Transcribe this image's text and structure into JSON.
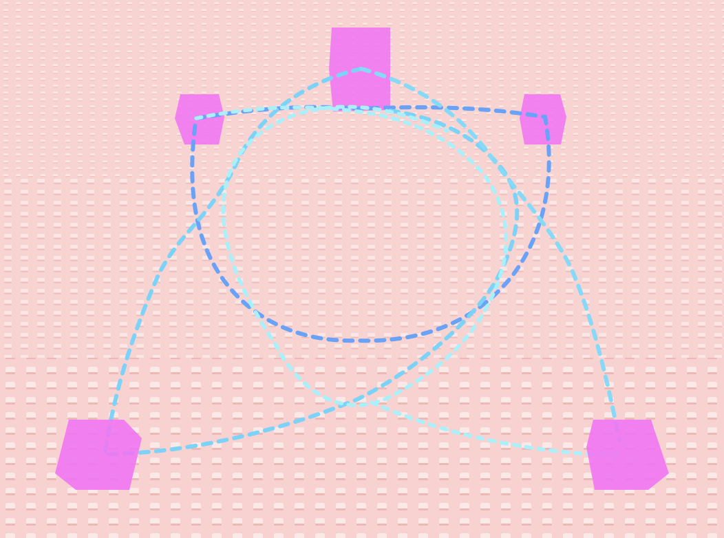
{
  "scene": {
    "kind": "3d-game-viewport",
    "colors": {
      "floor": "#f7d4d2",
      "floor_stud": "#fbe6e4",
      "floor_stud_shadow": "#efbdbb",
      "marker_part": "#f075f2",
      "path_curve": "#6aa2f8",
      "path_edge": "#7dd3f7",
      "path_dotted": "#a9f0fb"
    },
    "parts": [
      {
        "name": "top-center-part"
      },
      {
        "name": "upper-left-part"
      },
      {
        "name": "upper-right-part"
      },
      {
        "name": "lower-left-part"
      },
      {
        "name": "lower-right-part"
      }
    ],
    "paths": [
      {
        "name": "blue-loop-path",
        "style": "dashed"
      },
      {
        "name": "light-blue-left-path",
        "style": "dashed"
      },
      {
        "name": "light-blue-right-path",
        "style": "dashed"
      },
      {
        "name": "dotted-loop-path",
        "style": "dotted"
      }
    ]
  }
}
